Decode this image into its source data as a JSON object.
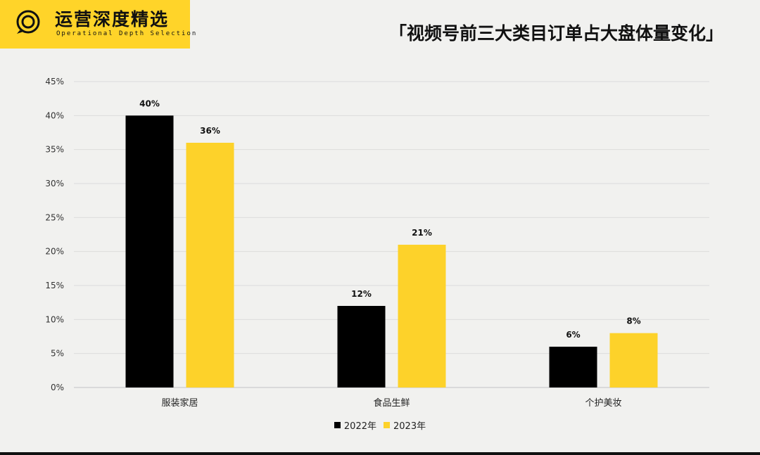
{
  "brand": {
    "name": "运营深度精选",
    "tagline": "Operational Depth Selection"
  },
  "colors": {
    "accent": "#ffd429",
    "dark": "#000000",
    "yellow": "#fdd22a"
  },
  "chart_data": {
    "type": "bar",
    "title": "「视频号前三大类目订单占大盘体量变化」",
    "categories": [
      "服装家居",
      "食品生鲜",
      "个护美妆"
    ],
    "series": [
      {
        "name": "2022年",
        "values": [
          40,
          12,
          6
        ],
        "labels": [
          "40%",
          "12%",
          "6%"
        ],
        "color": "#000000"
      },
      {
        "name": "2023年",
        "values": [
          36,
          21,
          8
        ],
        "labels": [
          "36%",
          "21%",
          "8%"
        ],
        "color": "#fdd22a"
      }
    ],
    "yticks": [
      "0%",
      "5%",
      "10%",
      "15%",
      "20%",
      "25%",
      "30%",
      "35%",
      "40%",
      "45%"
    ],
    "ylim": [
      0,
      45
    ],
    "grid": true,
    "legend_position": "bottom-center"
  }
}
